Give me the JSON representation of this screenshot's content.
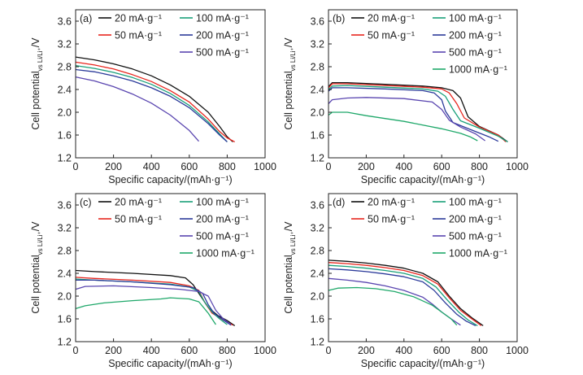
{
  "figure": {
    "colors": {
      "20": "#111111",
      "50": "#e8261e",
      "100": "#1aa07a",
      "200": "#2b3a9a",
      "500": "#5a46b0",
      "1000": "#1fa86a"
    }
  },
  "chart_data": [
    {
      "type": "line",
      "panel_label": "(a)",
      "xlabel": "Specific capacity/(mAh·g⁻¹)",
      "ylabel_main": "Cell potential",
      "ylabel_sub": "vs Li/Li⁺",
      "ylabel_unit": "/V",
      "xlim": [
        0,
        1000
      ],
      "ylim": [
        1.2,
        3.8
      ],
      "xticks": [
        "0",
        "200",
        "400",
        "600",
        "800",
        "1000"
      ],
      "yticks": [
        "1.2",
        "1.6",
        "2.0",
        "2.4",
        "2.8",
        "3.2",
        "3.6"
      ],
      "series": [
        {
          "name": "20 mA·g⁻¹",
          "color_key": "20",
          "x": [
            0,
            100,
            200,
            300,
            400,
            500,
            600,
            700,
            760,
            800,
            830
          ],
          "y": [
            2.97,
            2.92,
            2.85,
            2.76,
            2.64,
            2.48,
            2.28,
            2.0,
            1.75,
            1.57,
            1.48
          ]
        },
        {
          "name": "50 mA·g⁻¹",
          "color_key": "50",
          "x": [
            0,
            100,
            200,
            300,
            400,
            500,
            600,
            700,
            760,
            800,
            840
          ],
          "y": [
            2.88,
            2.83,
            2.76,
            2.66,
            2.54,
            2.38,
            2.18,
            1.88,
            1.66,
            1.55,
            1.48
          ]
        },
        {
          "name": "100 mA·g⁻¹",
          "color_key": "100",
          "x": [
            0,
            100,
            200,
            300,
            400,
            500,
            600,
            700,
            760,
            800
          ],
          "y": [
            2.82,
            2.77,
            2.7,
            2.61,
            2.49,
            2.33,
            2.12,
            1.83,
            1.62,
            1.48
          ]
        },
        {
          "name": "200 mA·g⁻¹",
          "color_key": "200",
          "x": [
            0,
            100,
            200,
            300,
            400,
            500,
            600,
            700,
            760,
            800
          ],
          "y": [
            2.75,
            2.71,
            2.64,
            2.55,
            2.43,
            2.28,
            2.08,
            1.8,
            1.6,
            1.48
          ]
        },
        {
          "name": "500 mA·g⁻¹",
          "color_key": "500",
          "x": [
            0,
            100,
            200,
            300,
            400,
            500,
            600,
            650
          ],
          "y": [
            2.62,
            2.55,
            2.45,
            2.32,
            2.16,
            1.95,
            1.68,
            1.49
          ]
        }
      ]
    },
    {
      "type": "line",
      "panel_label": "(b)",
      "xlabel": "Specific capacity/(mAh·g⁻¹)",
      "ylabel_main": "Cell potential",
      "ylabel_sub": "vs Li/Li⁺",
      "ylabel_unit": "/V",
      "xlim": [
        0,
        1000
      ],
      "ylim": [
        1.2,
        3.8
      ],
      "xticks": [
        "0",
        "200",
        "400",
        "600",
        "800",
        "1000"
      ],
      "yticks": [
        "1.2",
        "1.6",
        "2.0",
        "2.4",
        "2.8",
        "3.2",
        "3.6"
      ],
      "series": [
        {
          "name": "20 mA·g⁻¹",
          "color_key": "20",
          "x": [
            0,
            20,
            100,
            300,
            500,
            600,
            660,
            700,
            740,
            800,
            900,
            950
          ],
          "y": [
            2.45,
            2.52,
            2.52,
            2.49,
            2.46,
            2.43,
            2.38,
            2.25,
            1.92,
            1.75,
            1.6,
            1.48
          ]
        },
        {
          "name": "50 mA·g⁻¹",
          "color_key": "50",
          "x": [
            0,
            20,
            100,
            300,
            500,
            600,
            640,
            680,
            720,
            800,
            900,
            940
          ],
          "y": [
            2.43,
            2.5,
            2.5,
            2.47,
            2.44,
            2.41,
            2.34,
            2.15,
            1.9,
            1.74,
            1.6,
            1.48
          ]
        },
        {
          "name": "100 mA·g⁻¹",
          "color_key": "100",
          "x": [
            0,
            20,
            100,
            300,
            500,
            580,
            620,
            660,
            700,
            800,
            900,
            950
          ],
          "y": [
            2.4,
            2.46,
            2.47,
            2.44,
            2.41,
            2.37,
            2.28,
            2.05,
            1.85,
            1.72,
            1.58,
            1.48
          ]
        },
        {
          "name": "200 mA·g⁻¹",
          "color_key": "200",
          "x": [
            0,
            20,
            100,
            300,
            500,
            560,
            600,
            620,
            660,
            750,
            850,
            900
          ],
          "y": [
            2.37,
            2.43,
            2.43,
            2.41,
            2.38,
            2.34,
            2.22,
            2.02,
            1.82,
            1.7,
            1.57,
            1.49
          ]
        },
        {
          "name": "500 mA·g⁻¹",
          "color_key": "500",
          "x": [
            0,
            20,
            100,
            200,
            400,
            550,
            600,
            640,
            700,
            780,
            830
          ],
          "y": [
            2.15,
            2.22,
            2.25,
            2.26,
            2.24,
            2.18,
            2.05,
            1.86,
            1.74,
            1.62,
            1.5
          ]
        },
        {
          "name": "1000 mA·g⁻¹",
          "color_key": "1000",
          "x": [
            0,
            20,
            100,
            200,
            400,
            600,
            700,
            750,
            790
          ],
          "y": [
            1.95,
            2.0,
            2.0,
            1.94,
            1.84,
            1.71,
            1.63,
            1.57,
            1.5
          ]
        }
      ]
    },
    {
      "type": "line",
      "panel_label": "(c)",
      "xlabel": "Specific capacity/(mAh·g⁻¹)",
      "ylabel_main": "Cell potential",
      "ylabel_sub": "vs Li/Li⁺",
      "ylabel_unit": "/V",
      "xlim": [
        0,
        1000
      ],
      "ylim": [
        1.2,
        3.8
      ],
      "xticks": [
        "0",
        "200",
        "400",
        "600",
        "800",
        "1000"
      ],
      "yticks": [
        "1.2",
        "1.6",
        "2.0",
        "2.4",
        "2.8",
        "3.2",
        "3.6"
      ],
      "series": [
        {
          "name": "20 mA·g⁻¹",
          "color_key": "20",
          "x": [
            0,
            100,
            300,
            500,
            580,
            620,
            660,
            700,
            750,
            800,
            840
          ],
          "y": [
            2.45,
            2.43,
            2.4,
            2.36,
            2.32,
            2.2,
            2.0,
            1.8,
            1.66,
            1.57,
            1.48
          ]
        },
        {
          "name": "50 mA·g⁻¹",
          "color_key": "50",
          "x": [
            0,
            100,
            300,
            500,
            600,
            650,
            680,
            720,
            780,
            830
          ],
          "y": [
            2.33,
            2.31,
            2.28,
            2.24,
            2.18,
            2.1,
            1.9,
            1.7,
            1.58,
            1.49
          ]
        },
        {
          "name": "100 mA·g⁻¹",
          "color_key": "100",
          "x": [
            0,
            100,
            300,
            500,
            600,
            650,
            680,
            720,
            760,
            800
          ],
          "y": [
            2.3,
            2.28,
            2.25,
            2.21,
            2.16,
            2.08,
            1.9,
            1.72,
            1.6,
            1.5
          ]
        },
        {
          "name": "200 mA·g⁻¹",
          "color_key": "200",
          "x": [
            0,
            100,
            300,
            500,
            620,
            670,
            700,
            730,
            780,
            820
          ],
          "y": [
            2.28,
            2.28,
            2.25,
            2.2,
            2.15,
            2.05,
            1.85,
            1.7,
            1.58,
            1.49
          ]
        },
        {
          "name": "500 mA·g⁻¹",
          "color_key": "500",
          "x": [
            0,
            50,
            200,
            400,
            550,
            650,
            700,
            740,
            780,
            820
          ],
          "y": [
            2.12,
            2.17,
            2.18,
            2.15,
            2.12,
            2.08,
            2.0,
            1.75,
            1.6,
            1.5
          ]
        },
        {
          "name": "1000 mA·g⁻¹",
          "color_key": "1000",
          "x": [
            0,
            50,
            150,
            300,
            450,
            500,
            600,
            650,
            700,
            740
          ],
          "y": [
            1.78,
            1.83,
            1.88,
            1.92,
            1.95,
            1.97,
            1.95,
            1.9,
            1.7,
            1.5
          ]
        }
      ]
    },
    {
      "type": "line",
      "panel_label": "(d)",
      "xlabel": "Specific capacity/(mAh·g⁻¹)",
      "ylabel_main": "Cell potential",
      "ylabel_sub": "vs Li/Li⁺",
      "ylabel_unit": "/V",
      "xlim": [
        0,
        1000
      ],
      "ylim": [
        1.2,
        3.8
      ],
      "xticks": [
        "0",
        "200",
        "400",
        "600",
        "800",
        "1000"
      ],
      "yticks": [
        "1.2",
        "1.6",
        "2.0",
        "2.4",
        "2.8",
        "3.2",
        "3.6"
      ],
      "series": [
        {
          "name": "20 mA·g⁻¹",
          "color_key": "20",
          "x": [
            0,
            100,
            200,
            300,
            400,
            500,
            580,
            640,
            700,
            760,
            820
          ],
          "y": [
            2.63,
            2.61,
            2.58,
            2.54,
            2.49,
            2.4,
            2.25,
            2.0,
            1.78,
            1.62,
            1.48
          ]
        },
        {
          "name": "50 mA·g⁻¹",
          "color_key": "50",
          "x": [
            0,
            100,
            200,
            300,
            400,
            500,
            580,
            640,
            700,
            760,
            810
          ],
          "y": [
            2.59,
            2.57,
            2.54,
            2.5,
            2.45,
            2.36,
            2.21,
            1.97,
            1.75,
            1.6,
            1.48
          ]
        },
        {
          "name": "100 mA·g⁻¹",
          "color_key": "100",
          "x": [
            0,
            100,
            200,
            300,
            400,
            500,
            570,
            630,
            690,
            740,
            790
          ],
          "y": [
            2.54,
            2.52,
            2.49,
            2.45,
            2.4,
            2.31,
            2.16,
            1.93,
            1.72,
            1.58,
            1.48
          ]
        },
        {
          "name": "200 mA·g⁻¹",
          "color_key": "200",
          "x": [
            0,
            100,
            200,
            300,
            400,
            500,
            560,
            620,
            680,
            730,
            780
          ],
          "y": [
            2.48,
            2.46,
            2.43,
            2.39,
            2.34,
            2.25,
            2.1,
            1.88,
            1.68,
            1.56,
            1.48
          ]
        },
        {
          "name": "500 mA·g⁻¹",
          "color_key": "500",
          "x": [
            0,
            100,
            200,
            300,
            400,
            500,
            550,
            600,
            650,
            700
          ],
          "y": [
            2.31,
            2.28,
            2.24,
            2.18,
            2.1,
            1.98,
            1.86,
            1.72,
            1.6,
            1.49
          ]
        },
        {
          "name": "1000 mA·g⁻¹",
          "color_key": "1000",
          "x": [
            0,
            50,
            150,
            250,
            350,
            450,
            550,
            600,
            650,
            680
          ],
          "y": [
            2.1,
            2.14,
            2.15,
            2.13,
            2.08,
            1.99,
            1.84,
            1.72,
            1.6,
            1.49
          ]
        }
      ]
    }
  ]
}
